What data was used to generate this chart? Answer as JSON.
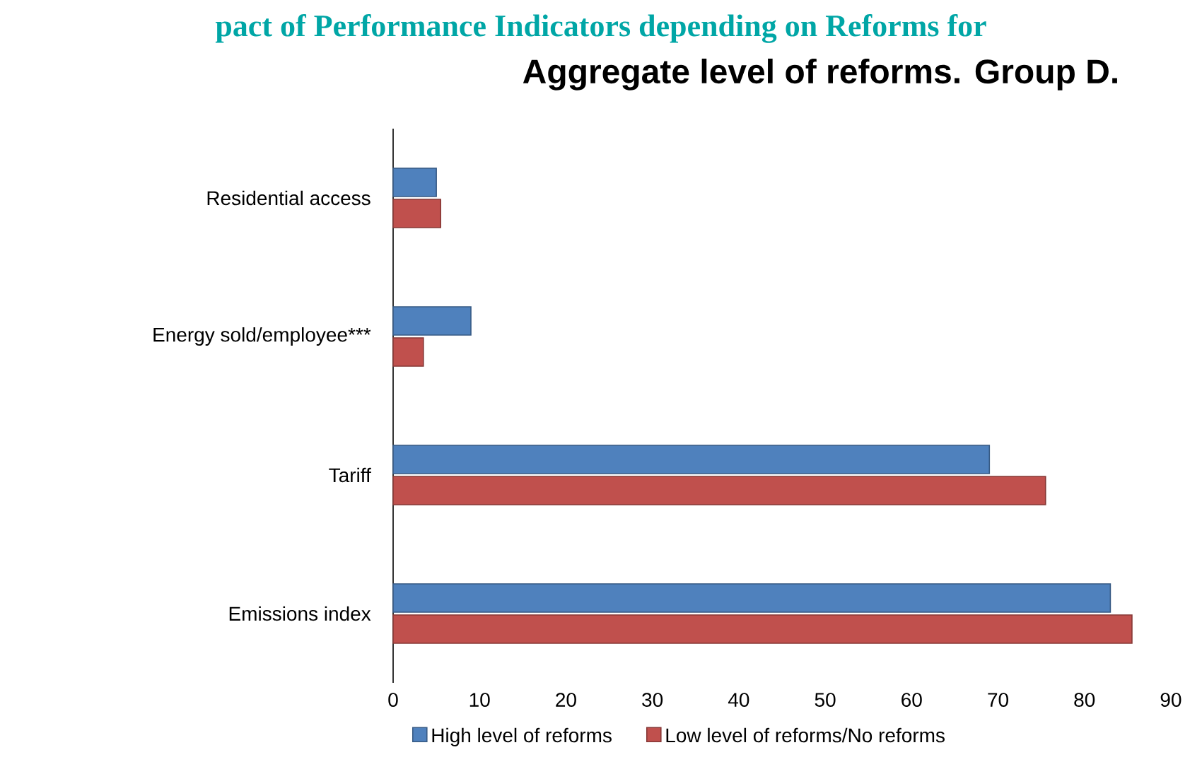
{
  "chart_data": {
    "type": "bar",
    "orientation": "horizontal",
    "title": "Aggregate level of reforms. Group D.",
    "annotations": [
      "pact of Performance Indicators depending on Reforms for"
    ],
    "categories": [
      "Residential access",
      "Energy sold/employee***",
      "Tariff",
      "Emissions index"
    ],
    "series": [
      {
        "name": "High level of reforms",
        "color": "#4f81bd",
        "values": [
          5,
          9,
          69,
          83
        ]
      },
      {
        "name": "Low level of reforms/No reforms",
        "color": "#c0504d",
        "values": [
          5.5,
          3.5,
          75.5,
          85.5
        ]
      }
    ],
    "xlim": [
      0,
      90
    ],
    "xticks": [
      0,
      10,
      20,
      30,
      40,
      50,
      60,
      70,
      80,
      90
    ],
    "grid": false,
    "legend": "bottom"
  }
}
